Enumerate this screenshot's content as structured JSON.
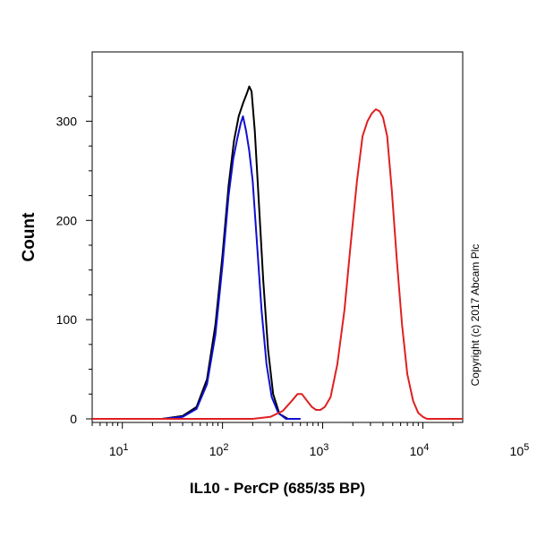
{
  "chart_data": {
    "type": "line",
    "xlabel": "IL10 - PerCP (685/35 BP)",
    "ylabel": "Count",
    "x_scale": "log",
    "xlim": [
      5,
      25000
    ],
    "ylim": [
      0,
      350
    ],
    "x_ticks": [
      {
        "value": 10,
        "base": "10",
        "exp": "1"
      },
      {
        "value": 100,
        "base": "10",
        "exp": "2"
      },
      {
        "value": 1000,
        "base": "10",
        "exp": "3"
      },
      {
        "value": 10000,
        "base": "10",
        "exp": "4"
      },
      {
        "value": 100000,
        "base": "10",
        "exp": "5"
      }
    ],
    "y_ticks": [
      0,
      100,
      200,
      300
    ],
    "grid": false,
    "legend": "none",
    "annotation": "Copyright (c) 2017 Abcam Plc",
    "series": [
      {
        "color": "#000000",
        "points": [
          [
            5,
            0
          ],
          [
            25,
            0
          ],
          [
            40,
            3
          ],
          [
            55,
            12
          ],
          [
            70,
            40
          ],
          [
            85,
            95
          ],
          [
            100,
            165
          ],
          [
            115,
            235
          ],
          [
            130,
            280
          ],
          [
            145,
            305
          ],
          [
            160,
            318
          ],
          [
            175,
            328
          ],
          [
            185,
            335
          ],
          [
            195,
            330
          ],
          [
            210,
            290
          ],
          [
            230,
            220
          ],
          [
            255,
            140
          ],
          [
            285,
            70
          ],
          [
            320,
            25
          ],
          [
            370,
            5
          ],
          [
            450,
            0
          ],
          [
            600,
            0
          ]
        ]
      },
      {
        "color": "#1010d0",
        "points": [
          [
            5,
            0
          ],
          [
            25,
            0
          ],
          [
            40,
            2
          ],
          [
            55,
            10
          ],
          [
            70,
            35
          ],
          [
            85,
            85
          ],
          [
            100,
            155
          ],
          [
            115,
            225
          ],
          [
            128,
            262
          ],
          [
            140,
            282
          ],
          [
            152,
            298
          ],
          [
            160,
            305
          ],
          [
            172,
            290
          ],
          [
            185,
            270
          ],
          [
            200,
            240
          ],
          [
            220,
            180
          ],
          [
            245,
            110
          ],
          [
            275,
            55
          ],
          [
            310,
            22
          ],
          [
            360,
            6
          ],
          [
            430,
            0
          ],
          [
            600,
            0
          ]
        ]
      },
      {
        "color": "#e02020",
        "points": [
          [
            5,
            0
          ],
          [
            200,
            0
          ],
          [
            300,
            2
          ],
          [
            400,
            8
          ],
          [
            480,
            17
          ],
          [
            560,
            25
          ],
          [
            620,
            25
          ],
          [
            700,
            18
          ],
          [
            780,
            12
          ],
          [
            860,
            9
          ],
          [
            950,
            9
          ],
          [
            1050,
            12
          ],
          [
            1200,
            22
          ],
          [
            1400,
            55
          ],
          [
            1650,
            110
          ],
          [
            1900,
            175
          ],
          [
            2200,
            240
          ],
          [
            2500,
            285
          ],
          [
            2800,
            300
          ],
          [
            3100,
            308
          ],
          [
            3400,
            312
          ],
          [
            3700,
            310
          ],
          [
            4000,
            304
          ],
          [
            4400,
            285
          ],
          [
            4900,
            230
          ],
          [
            5500,
            160
          ],
          [
            6200,
            95
          ],
          [
            7000,
            45
          ],
          [
            8000,
            18
          ],
          [
            9000,
            6
          ],
          [
            10000,
            2
          ],
          [
            11000,
            0
          ],
          [
            25000,
            0
          ]
        ]
      }
    ]
  }
}
